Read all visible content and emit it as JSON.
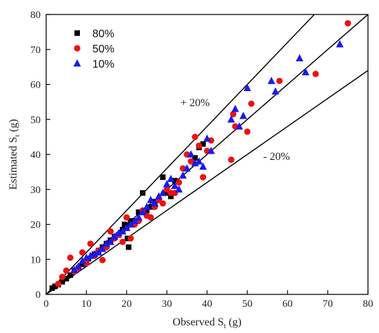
{
  "chart_data": {
    "type": "scatter",
    "xlabel": {
      "main": "Observed S",
      "sub": "t",
      "tail": " (g)"
    },
    "ylabel": {
      "main": "Estimated S",
      "sub": "t",
      "tail": " (g)"
    },
    "xlim": [
      0,
      80
    ],
    "ylim": [
      0,
      80
    ],
    "xticks": [
      0,
      10,
      20,
      30,
      40,
      50,
      60,
      70,
      80
    ],
    "yticks": [
      0,
      10,
      20,
      30,
      40,
      50,
      60,
      70,
      80
    ],
    "grid": false,
    "legend_position": "top-left",
    "reference_lines": [
      {
        "slope": 1.2,
        "label": "+ 20%"
      },
      {
        "slope": 1.0,
        "label": ""
      },
      {
        "slope": 0.8,
        "label": "- 20%"
      }
    ],
    "series": [
      {
        "name": "80%",
        "marker": "square",
        "color": "#000000",
        "points": [
          [
            1.5,
            1.8
          ],
          [
            2.2,
            2.3
          ],
          [
            3,
            2.8
          ],
          [
            4,
            3.6
          ],
          [
            5,
            4.5
          ],
          [
            6,
            5.5
          ],
          [
            7,
            6.8
          ],
          [
            8,
            7.5
          ],
          [
            9,
            8.6
          ],
          [
            10,
            9.5
          ],
          [
            10.5,
            10.2
          ],
          [
            11.5,
            11
          ],
          [
            12,
            11.5
          ],
          [
            13,
            12.5
          ],
          [
            14,
            13.5
          ],
          [
            15,
            14.5
          ],
          [
            16,
            15.5
          ],
          [
            17,
            16.5
          ],
          [
            18,
            17
          ],
          [
            19,
            18.5
          ],
          [
            19.5,
            20
          ],
          [
            20,
            19.5
          ],
          [
            20.5,
            13.5
          ],
          [
            21,
            21
          ],
          [
            22,
            21
          ],
          [
            23,
            23.5
          ],
          [
            24,
            29
          ],
          [
            25,
            24
          ],
          [
            26,
            25
          ],
          [
            27,
            26.5
          ],
          [
            28,
            27
          ],
          [
            29,
            33.5
          ],
          [
            30,
            29
          ],
          [
            31,
            28
          ],
          [
            32,
            32.5
          ],
          [
            37,
            39
          ],
          [
            38,
            42
          ],
          [
            39,
            43
          ],
          [
            20.2,
            16
          ]
        ]
      },
      {
        "name": "50%",
        "marker": "circle",
        "color": "#ee1111",
        "points": [
          [
            3,
            3
          ],
          [
            4,
            5
          ],
          [
            5,
            6.8
          ],
          [
            6,
            10.5
          ],
          [
            7,
            6.5
          ],
          [
            8,
            7.5
          ],
          [
            9,
            12
          ],
          [
            10,
            9
          ],
          [
            11,
            14.5
          ],
          [
            12,
            11
          ],
          [
            13,
            12.5
          ],
          [
            14,
            9.8
          ],
          [
            15,
            13.5
          ],
          [
            16,
            18
          ],
          [
            17,
            16
          ],
          [
            18,
            17
          ],
          [
            19,
            15
          ],
          [
            20,
            22
          ],
          [
            21,
            16
          ],
          [
            22,
            20
          ],
          [
            23,
            21
          ],
          [
            24,
            24
          ],
          [
            25,
            22.5
          ],
          [
            26,
            22
          ],
          [
            27,
            25
          ],
          [
            28,
            27
          ],
          [
            29,
            26
          ],
          [
            30,
            30
          ],
          [
            31,
            29
          ],
          [
            32,
            29
          ],
          [
            33,
            32
          ],
          [
            34,
            36
          ],
          [
            35,
            40
          ],
          [
            36,
            38
          ],
          [
            37,
            45
          ],
          [
            38,
            42.5
          ],
          [
            39,
            33.5
          ],
          [
            40,
            41
          ],
          [
            41,
            44
          ],
          [
            46,
            38.5
          ],
          [
            46.5,
            51.5
          ],
          [
            47,
            48
          ],
          [
            50,
            46.5
          ],
          [
            51,
            54.5
          ],
          [
            58,
            61
          ],
          [
            67,
            63
          ],
          [
            75,
            77.5
          ]
        ]
      },
      {
        "name": "10%",
        "marker": "triangle",
        "color": "#1a1aee",
        "points": [
          [
            7,
            7
          ],
          [
            8,
            8
          ],
          [
            9,
            9.5
          ],
          [
            10,
            10.5
          ],
          [
            11,
            11
          ],
          [
            12,
            11.5
          ],
          [
            13,
            12
          ],
          [
            14,
            13
          ],
          [
            15,
            14.5
          ],
          [
            16,
            15
          ],
          [
            17,
            16.5
          ],
          [
            18,
            17.5
          ],
          [
            19,
            18
          ],
          [
            20,
            19
          ],
          [
            21,
            20
          ],
          [
            22,
            21
          ],
          [
            23,
            22
          ],
          [
            24,
            23.5
          ],
          [
            25,
            25
          ],
          [
            26,
            27
          ],
          [
            27,
            26
          ],
          [
            28,
            28
          ],
          [
            29,
            29
          ],
          [
            30,
            31.5
          ],
          [
            31,
            33
          ],
          [
            32,
            31
          ],
          [
            33,
            30
          ],
          [
            34,
            34
          ],
          [
            35,
            36
          ],
          [
            36,
            40
          ],
          [
            37,
            37.5
          ],
          [
            38,
            38
          ],
          [
            39,
            36.5
          ],
          [
            40,
            44.5
          ],
          [
            41,
            41
          ],
          [
            46,
            50
          ],
          [
            47,
            53
          ],
          [
            48,
            48
          ],
          [
            49,
            51
          ],
          [
            50,
            59
          ],
          [
            56,
            61
          ],
          [
            57,
            58
          ],
          [
            63,
            67.5
          ],
          [
            64.5,
            63.5
          ],
          [
            73,
            71.5
          ]
        ]
      }
    ]
  }
}
